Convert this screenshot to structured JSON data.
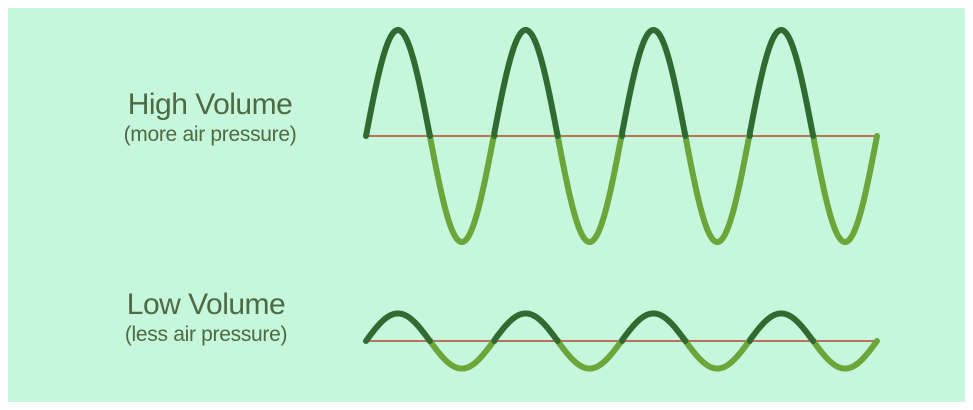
{
  "high_volume": {
    "title": "High Volume",
    "subtitle": "(more air pressure)",
    "cycles": 4,
    "relative_amplitude": 1.0
  },
  "low_volume": {
    "title": "Low Volume",
    "subtitle": "(less air pressure)",
    "cycles": 4,
    "relative_amplitude": 0.26
  },
  "colors": {
    "background": "#c6f7dc",
    "text": "#4d6a42",
    "axis_line": "#b5735a",
    "crest": "#2f6b31",
    "trough": "#6aa63a"
  }
}
